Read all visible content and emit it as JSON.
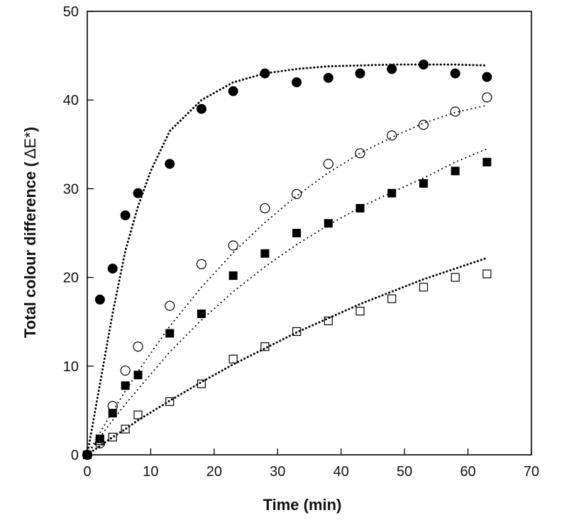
{
  "chart_data": {
    "type": "scatter",
    "title": "",
    "xlabel": "Time (min)",
    "ylabel_main": "Total colour difference (",
    "ylabel_symbol": "ΔE*",
    "ylabel_close": ")",
    "xlim": [
      0,
      70
    ],
    "ylim": [
      0,
      50
    ],
    "xticks": [
      "0",
      "10",
      "20",
      "30",
      "40",
      "50",
      "60",
      "70"
    ],
    "yticks": [
      "0",
      "10",
      "20",
      "30",
      "40",
      "50"
    ],
    "grid": false,
    "legend": "none",
    "series": [
      {
        "name": "filled-circles",
        "marker": "filled-circle",
        "x": [
          0,
          2,
          4,
          6,
          8,
          13,
          18,
          23,
          28,
          33,
          38,
          43,
          48,
          53,
          58,
          63
        ],
        "y": [
          0,
          17.5,
          21,
          27,
          29.5,
          32.8,
          39,
          41,
          43,
          42,
          42.5,
          43,
          43.5,
          44,
          43,
          42.6
        ],
        "fit": {
          "style": "dotted-heavy",
          "x": [
            0,
            2,
            4,
            6,
            8,
            10,
            13,
            18,
            23,
            28,
            33,
            38,
            43,
            48,
            53,
            58,
            63
          ],
          "y": [
            0,
            8,
            16,
            23,
            28,
            32,
            36.5,
            40,
            42,
            43,
            43.5,
            43.8,
            43.9,
            44,
            44,
            44,
            43.9
          ]
        }
      },
      {
        "name": "open-circles",
        "marker": "open-circle",
        "x": [
          0,
          2,
          4,
          6,
          8,
          13,
          18,
          23,
          28,
          33,
          38,
          43,
          48,
          53,
          58,
          63
        ],
        "y": [
          0,
          1.3,
          5.5,
          9.5,
          12.2,
          16.8,
          21.5,
          23.6,
          27.8,
          29.4,
          32.8,
          34,
          36,
          37.2,
          38.7,
          40.3
        ],
        "fit": {
          "style": "dotted-light",
          "x": [
            0,
            2,
            4,
            6,
            8,
            13,
            18,
            23,
            28,
            33,
            38,
            43,
            48,
            53,
            58,
            63
          ],
          "y": [
            0,
            2.5,
            4.9,
            7.2,
            9.4,
            14.5,
            18.9,
            22.8,
            26.2,
            29.2,
            31.8,
            34.0,
            35.8,
            37.4,
            38.6,
            39.4
          ]
        }
      },
      {
        "name": "filled-squares",
        "marker": "filled-square",
        "x": [
          0,
          2,
          4,
          6,
          8,
          13,
          18,
          23,
          28,
          33,
          38,
          43,
          48,
          53,
          58,
          63
        ],
        "y": [
          0,
          1.8,
          4.7,
          7.8,
          9,
          13.7,
          15.9,
          20.2,
          22.7,
          25,
          26.1,
          27.8,
          29.5,
          30.6,
          32,
          33
        ],
        "fit": {
          "style": "dotted-light",
          "x": [
            0,
            2,
            4,
            6,
            8,
            13,
            18,
            23,
            28,
            33,
            38,
            43,
            48,
            53,
            58,
            63
          ],
          "y": [
            0,
            2.0,
            3.9,
            5.7,
            7.4,
            11.6,
            15.2,
            18.4,
            21.2,
            23.7,
            25.9,
            27.9,
            29.6,
            31.2,
            33.0,
            34.5
          ]
        }
      },
      {
        "name": "open-squares",
        "marker": "open-square",
        "x": [
          0,
          2,
          4,
          6,
          8,
          13,
          18,
          23,
          28,
          33,
          38,
          43,
          48,
          53,
          58,
          63
        ],
        "y": [
          0,
          1.6,
          2,
          2.9,
          4.5,
          6,
          8,
          10.8,
          12.2,
          13.9,
          15.1,
          16.2,
          17.6,
          18.9,
          20,
          20.4
        ],
        "fit": {
          "style": "dotted-heavy",
          "x": [
            0,
            2,
            4,
            6,
            8,
            13,
            18,
            23,
            28,
            33,
            38,
            43,
            48,
            53,
            58,
            63
          ],
          "y": [
            0,
            1.0,
            2.0,
            2.9,
            3.9,
            6.1,
            8.2,
            10.2,
            12.0,
            13.8,
            15.4,
            17.0,
            18.4,
            19.8,
            21.0,
            22.2
          ]
        }
      }
    ]
  }
}
